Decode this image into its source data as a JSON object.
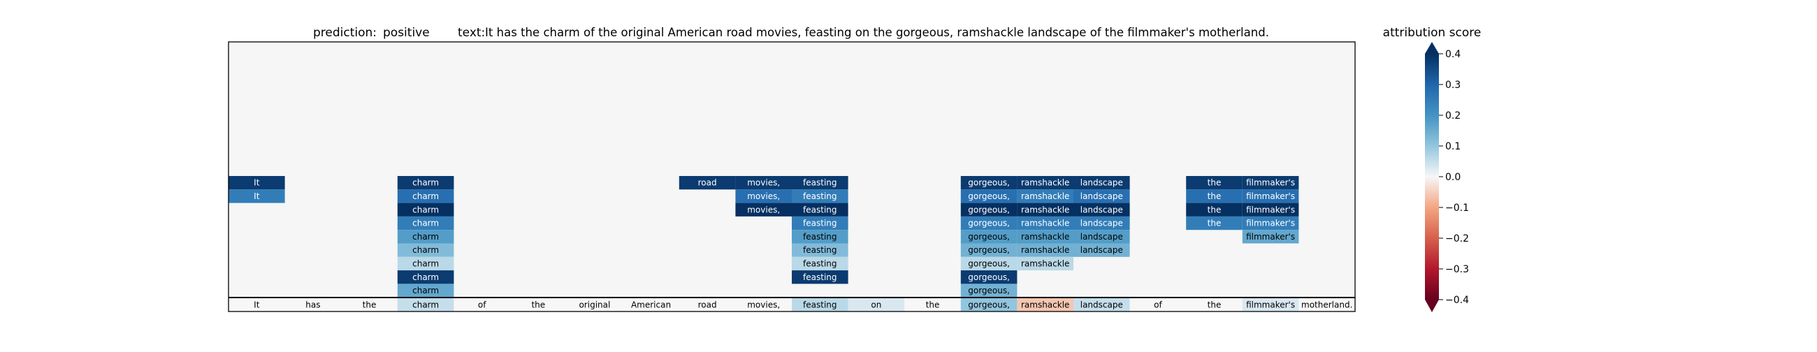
{
  "title": {
    "prediction_label": "prediction:",
    "prediction_value": "positive",
    "text_label": "text:",
    "text_value": "It has the charm of the original American road movies, feasting on the gorgeous, ramshackle landscape of the filmmaker's motherland."
  },
  "colorbar": {
    "title": "attribution score",
    "ticks": [
      "0.4",
      "0.3",
      "0.2",
      "0.1",
      "0.0",
      "−0.1",
      "−0.2",
      "−0.3",
      "−0.4"
    ]
  },
  "chart_data": {
    "type": "heatmap",
    "title": "prediction:  positive     text:  It has the charm of the original American road movies, feasting on the gorgeous, ramshackle landscape of the filmmaker's motherland.",
    "tokens": [
      "It",
      "has",
      "the",
      "charm",
      "of",
      "the",
      "original",
      "American",
      "road",
      "movies,",
      "feasting",
      "on",
      "the",
      "gorgeous,",
      "ramshackle",
      "landscape",
      "of",
      "the",
      "filmmaker's",
      "motherland."
    ],
    "bottom_row_scores": [
      0.0,
      0.0,
      0.0,
      0.05,
      0.0,
      0.0,
      0.0,
      0.0,
      0.0,
      0.0,
      0.06,
      0.03,
      0.0,
      0.1,
      -0.06,
      0.05,
      0.0,
      0.0,
      0.03,
      0.0
    ],
    "highlight_rows": [
      [
        0.38,
        null,
        null,
        0.38,
        null,
        null,
        null,
        null,
        0.38,
        0.38,
        0.38,
        null,
        null,
        0.38,
        0.38,
        0.38,
        null,
        0.38,
        0.38,
        null
      ],
      [
        0.25,
        null,
        null,
        0.28,
        null,
        null,
        null,
        null,
        null,
        0.28,
        0.25,
        null,
        null,
        0.28,
        0.25,
        0.28,
        null,
        0.28,
        0.28,
        null
      ],
      [
        null,
        null,
        null,
        0.42,
        null,
        null,
        null,
        null,
        null,
        0.42,
        0.42,
        null,
        null,
        0.4,
        0.4,
        0.4,
        null,
        0.42,
        0.4,
        null
      ],
      [
        null,
        null,
        null,
        0.25,
        null,
        null,
        null,
        null,
        null,
        null,
        0.25,
        null,
        null,
        0.25,
        0.25,
        0.25,
        null,
        0.25,
        0.25,
        null
      ],
      [
        null,
        null,
        null,
        0.18,
        null,
        null,
        null,
        null,
        null,
        null,
        0.18,
        null,
        null,
        0.18,
        0.18,
        0.18,
        null,
        null,
        0.16,
        null
      ],
      [
        null,
        null,
        null,
        0.12,
        null,
        null,
        null,
        null,
        null,
        null,
        0.12,
        null,
        null,
        0.14,
        0.14,
        0.14,
        null,
        null,
        null,
        null
      ],
      [
        null,
        null,
        null,
        0.06,
        null,
        null,
        null,
        null,
        null,
        null,
        0.06,
        null,
        null,
        0.06,
        0.06,
        null,
        null,
        null,
        null,
        null
      ],
      [
        null,
        null,
        null,
        0.38,
        null,
        null,
        null,
        null,
        null,
        null,
        0.38,
        null,
        null,
        0.38,
        null,
        null,
        null,
        null,
        null,
        null
      ],
      [
        null,
        null,
        null,
        0.16,
        null,
        null,
        null,
        null,
        null,
        null,
        null,
        null,
        null,
        0.14,
        null,
        null,
        null,
        null,
        null,
        null
      ]
    ],
    "color_range": [
      -0.4,
      0.4
    ],
    "colormap": "RdBu",
    "background": "#f5f6f5"
  }
}
